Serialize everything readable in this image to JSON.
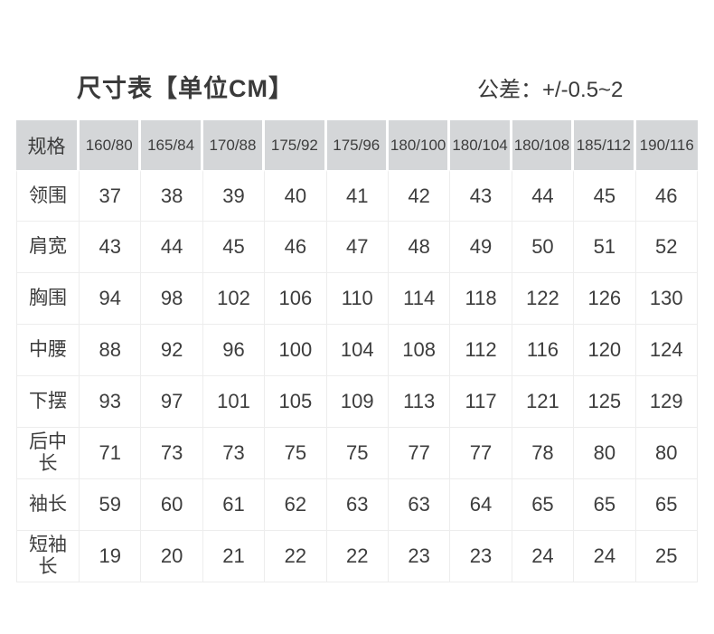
{
  "page": {
    "title": "尺寸表【单位CM】",
    "tolerance": "公差：+/-0.5~2"
  },
  "colors": {
    "background": "#ffffff",
    "header_bg": "#d4d6d8",
    "text": "#3d3d3d",
    "grid_border": "#ededed"
  },
  "chart_data": {
    "type": "table",
    "title": "尺寸表【单位CM】",
    "tolerance_note": "公差：+/-0.5~2",
    "header": [
      "规格",
      "160/80",
      "165/84",
      "170/88",
      "175/92",
      "175/96",
      "180/100",
      "180/104",
      "180/108",
      "185/112",
      "190/116"
    ],
    "rows": [
      {
        "label": "领围",
        "values": [
          37,
          38,
          39,
          40,
          41,
          42,
          43,
          44,
          45,
          46
        ]
      },
      {
        "label": "肩宽",
        "values": [
          43,
          44,
          45,
          46,
          47,
          48,
          49,
          50,
          51,
          52
        ]
      },
      {
        "label": "胸围",
        "values": [
          94,
          98,
          102,
          106,
          110,
          114,
          118,
          122,
          126,
          130
        ]
      },
      {
        "label": "中腰",
        "values": [
          88,
          92,
          96,
          100,
          104,
          108,
          112,
          116,
          120,
          124
        ]
      },
      {
        "label": "下摆",
        "values": [
          93,
          97,
          101,
          105,
          109,
          113,
          117,
          121,
          125,
          129
        ]
      },
      {
        "label": "后中长",
        "values": [
          71,
          73,
          73,
          75,
          75,
          77,
          77,
          78,
          80,
          80
        ]
      },
      {
        "label": "袖长",
        "values": [
          59,
          60,
          61,
          62,
          63,
          63,
          64,
          65,
          65,
          65
        ]
      },
      {
        "label": "短袖长",
        "values": [
          19,
          20,
          21,
          22,
          22,
          23,
          23,
          24,
          24,
          25
        ]
      }
    ]
  }
}
